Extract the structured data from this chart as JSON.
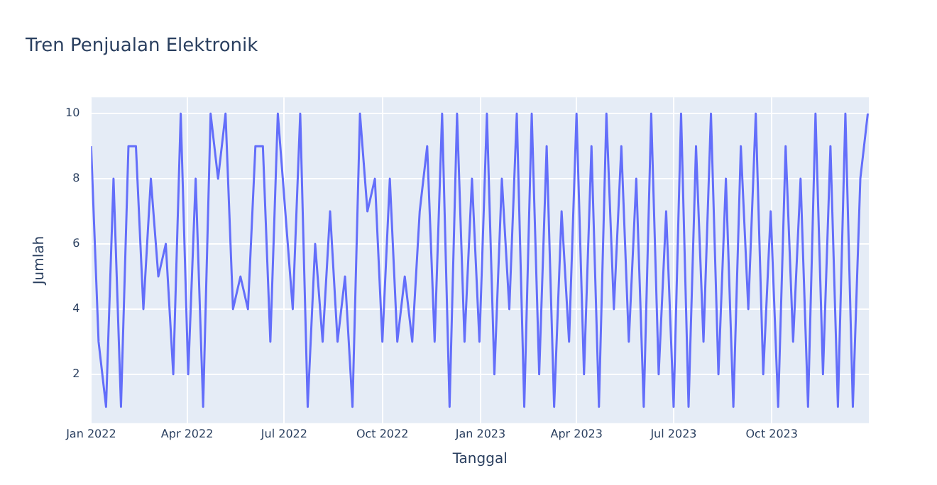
{
  "chart_data": {
    "type": "line",
    "title": "Tren Penjualan Elektronik",
    "xlabel": "Tanggal",
    "ylabel": "Jumlah",
    "x": [
      "2022-01-01",
      "2022-01-08",
      "2022-01-15",
      "2022-01-22",
      "2022-01-29",
      "2022-02-05",
      "2022-02-12",
      "2022-02-19",
      "2022-02-26",
      "2022-03-05",
      "2022-03-12",
      "2022-03-19",
      "2022-03-26",
      "2022-04-02",
      "2022-04-09",
      "2022-04-16",
      "2022-04-23",
      "2022-04-30",
      "2022-05-07",
      "2022-05-14",
      "2022-05-21",
      "2022-05-28",
      "2022-06-04",
      "2022-06-11",
      "2022-06-18",
      "2022-06-25",
      "2022-07-02",
      "2022-07-09",
      "2022-07-16",
      "2022-07-23",
      "2022-07-30",
      "2022-08-06",
      "2022-08-13",
      "2022-08-20",
      "2022-08-27",
      "2022-09-03",
      "2022-09-10",
      "2022-09-17",
      "2022-09-24",
      "2022-10-01",
      "2022-10-08",
      "2022-10-15",
      "2022-10-22",
      "2022-10-29",
      "2022-11-05",
      "2022-11-12",
      "2022-11-19",
      "2022-11-26",
      "2022-12-03",
      "2022-12-10",
      "2022-12-17",
      "2022-12-24",
      "2022-12-31",
      "2023-01-07",
      "2023-01-14",
      "2023-01-21",
      "2023-01-28",
      "2023-02-04",
      "2023-02-11",
      "2023-02-18",
      "2023-02-25",
      "2023-03-04",
      "2023-03-11",
      "2023-03-18",
      "2023-03-25",
      "2023-04-01",
      "2023-04-08",
      "2023-04-15",
      "2023-04-22",
      "2023-04-29",
      "2023-05-06",
      "2023-05-13",
      "2023-05-20",
      "2023-05-27",
      "2023-06-03",
      "2023-06-10",
      "2023-06-17",
      "2023-06-24",
      "2023-07-01",
      "2023-07-08",
      "2023-07-15",
      "2023-07-22",
      "2023-07-29",
      "2023-08-05",
      "2023-08-12",
      "2023-08-19",
      "2023-08-26",
      "2023-09-02",
      "2023-09-09",
      "2023-09-16",
      "2023-09-23",
      "2023-09-30",
      "2023-10-07",
      "2023-10-14",
      "2023-10-21",
      "2023-10-28",
      "2023-11-04",
      "2023-11-11",
      "2023-11-18",
      "2023-11-25",
      "2023-12-02",
      "2023-12-09",
      "2023-12-16",
      "2023-12-23",
      "2023-12-30"
    ],
    "series": [
      {
        "color": "#636efa",
        "values": [
          9,
          3,
          1,
          8,
          1,
          9,
          9,
          4,
          8,
          5,
          6,
          2,
          10,
          2,
          8,
          1,
          10,
          8,
          10,
          4,
          5,
          4,
          9,
          9,
          3,
          10,
          7,
          4,
          10,
          1,
          6,
          3,
          7,
          3,
          5,
          1,
          10,
          7,
          8,
          3,
          8,
          3,
          5,
          3,
          7,
          9,
          3,
          10,
          1,
          10,
          3,
          8,
          3,
          10,
          2,
          8,
          4,
          10,
          1,
          10,
          2,
          9,
          1,
          7,
          3,
          10,
          2,
          9,
          1,
          10,
          4,
          9,
          3,
          8,
          1,
          10,
          2,
          7,
          1,
          10,
          1,
          9,
          3,
          10,
          2,
          8,
          1,
          9,
          4,
          10,
          2,
          7,
          1,
          9,
          3,
          8,
          1,
          10,
          2,
          9,
          1,
          10,
          1,
          8,
          10
        ]
      }
    ],
    "xlim": [
      "2022-01-01",
      "2023-12-31"
    ],
    "xticks": [
      {
        "value": "2022-01-01",
        "label": "Jan 2022"
      },
      {
        "value": "2022-04-01",
        "label": "Apr 2022"
      },
      {
        "value": "2022-07-01",
        "label": "Jul 2022"
      },
      {
        "value": "2022-10-01",
        "label": "Oct 2022"
      },
      {
        "value": "2023-01-01",
        "label": "Jan 2023"
      },
      {
        "value": "2023-04-01",
        "label": "Apr 2023"
      },
      {
        "value": "2023-07-01",
        "label": "Jul 2023"
      },
      {
        "value": "2023-10-01",
        "label": "Oct 2023"
      }
    ],
    "ylim": [
      0.5,
      10.5
    ],
    "yticks": [
      2,
      4,
      6,
      8,
      10
    ],
    "grid": true,
    "legend": false,
    "marker": "none",
    "line_style": "solid"
  }
}
